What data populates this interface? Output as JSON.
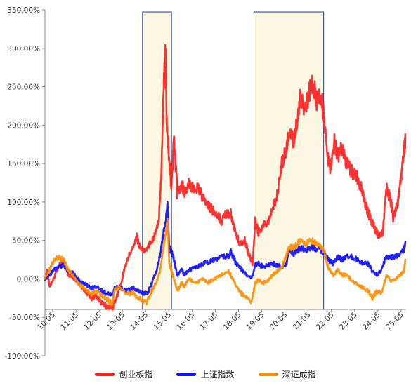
{
  "chart_data": {
    "type": "line",
    "title": "",
    "xlabel": "",
    "ylabel": "",
    "ylim": [
      -1.0,
      3.5
    ],
    "y_ticks": [
      "-100.00%",
      "-50.00%",
      "0.00%",
      "50.00%",
      "100.00%",
      "150.00%",
      "200.00%",
      "250.00%",
      "300.00%",
      "350.00%"
    ],
    "y_tick_values": [
      -1.0,
      -0.5,
      0.0,
      0.5,
      1.0,
      1.5,
      2.0,
      2.5,
      3.0,
      3.5
    ],
    "x_ticks": [
      "10-05",
      "11-05",
      "12-05",
      "13-05",
      "14-05",
      "15-05",
      "16-05",
      "17-05",
      "18-05",
      "19-05",
      "20-05",
      "21-05",
      "22-05",
      "23-05",
      "24-05",
      "25-05"
    ],
    "x_range": [
      2010.0,
      2025.55
    ],
    "grid": false,
    "legend_position": "bottom",
    "highlight_regions": [
      {
        "from": 2014.2,
        "to": 2015.45
      },
      {
        "from": 2019.0,
        "to": 2022.0
      }
    ],
    "series": [
      {
        "name": "创业板指",
        "color": "#ff1f1f",
        "points": [
          [
            2010.0,
            0.0
          ],
          [
            2010.1,
            0.1
          ],
          [
            2010.2,
            -0.1
          ],
          [
            2010.4,
            0.02
          ],
          [
            2010.6,
            0.18
          ],
          [
            2010.8,
            0.22
          ],
          [
            2011.0,
            0.05
          ],
          [
            2011.2,
            0.02
          ],
          [
            2011.4,
            -0.05
          ],
          [
            2011.6,
            -0.12
          ],
          [
            2011.8,
            -0.18
          ],
          [
            2012.0,
            -0.25
          ],
          [
            2012.2,
            -0.22
          ],
          [
            2012.4,
            -0.3
          ],
          [
            2012.6,
            -0.35
          ],
          [
            2012.9,
            -0.38
          ],
          [
            2013.0,
            -0.3
          ],
          [
            2013.2,
            -0.15
          ],
          [
            2013.4,
            0.1
          ],
          [
            2013.6,
            0.3
          ],
          [
            2013.8,
            0.4
          ],
          [
            2013.95,
            0.55
          ],
          [
            2014.1,
            0.4
          ],
          [
            2014.3,
            0.35
          ],
          [
            2014.5,
            0.45
          ],
          [
            2014.7,
            0.55
          ],
          [
            2014.9,
            0.75
          ],
          [
            2015.0,
            1.3
          ],
          [
            2015.1,
            2.4
          ],
          [
            2015.18,
            2.98
          ],
          [
            2015.25,
            2.0
          ],
          [
            2015.35,
            1.5
          ],
          [
            2015.45,
            1.2
          ],
          [
            2015.55,
            1.85
          ],
          [
            2015.7,
            1.1
          ],
          [
            2015.9,
            1.25
          ],
          [
            2016.0,
            1.1
          ],
          [
            2016.2,
            1.25
          ],
          [
            2016.4,
            1.15
          ],
          [
            2016.6,
            1.2
          ],
          [
            2016.8,
            1.05
          ],
          [
            2017.0,
            0.95
          ],
          [
            2017.2,
            0.9
          ],
          [
            2017.4,
            0.85
          ],
          [
            2017.6,
            0.75
          ],
          [
            2017.8,
            0.85
          ],
          [
            2018.0,
            0.85
          ],
          [
            2018.2,
            0.6
          ],
          [
            2018.4,
            0.45
          ],
          [
            2018.6,
            0.5
          ],
          [
            2018.8,
            0.3
          ],
          [
            2018.95,
            0.2
          ],
          [
            2019.05,
            0.75
          ],
          [
            2019.2,
            0.6
          ],
          [
            2019.4,
            0.7
          ],
          [
            2019.6,
            0.75
          ],
          [
            2019.8,
            0.9
          ],
          [
            2020.0,
            1.1
          ],
          [
            2020.2,
            1.5
          ],
          [
            2020.4,
            1.7
          ],
          [
            2020.5,
            1.9
          ],
          [
            2020.7,
            1.8
          ],
          [
            2020.9,
            2.1
          ],
          [
            2021.0,
            2.4
          ],
          [
            2021.2,
            2.2
          ],
          [
            2021.4,
            2.45
          ],
          [
            2021.55,
            2.55
          ],
          [
            2021.7,
            2.3
          ],
          [
            2021.9,
            2.4
          ],
          [
            2022.0,
            2.1
          ],
          [
            2022.15,
            1.6
          ],
          [
            2022.3,
            1.4
          ],
          [
            2022.45,
            1.8
          ],
          [
            2022.6,
            1.6
          ],
          [
            2022.8,
            1.7
          ],
          [
            2023.0,
            1.5
          ],
          [
            2023.2,
            1.4
          ],
          [
            2023.4,
            1.35
          ],
          [
            2023.6,
            1.2
          ],
          [
            2023.8,
            0.95
          ],
          [
            2024.0,
            0.8
          ],
          [
            2024.2,
            0.65
          ],
          [
            2024.4,
            0.55
          ],
          [
            2024.55,
            0.6
          ],
          [
            2024.7,
            1.2
          ],
          [
            2024.9,
            1.0
          ],
          [
            2025.0,
            0.8
          ],
          [
            2025.2,
            1.0
          ],
          [
            2025.35,
            1.35
          ],
          [
            2025.45,
            1.65
          ],
          [
            2025.52,
            1.8
          ]
        ]
      },
      {
        "name": "上证指数",
        "color": "#0c0cff",
        "points": [
          [
            2010.0,
            0.0
          ],
          [
            2010.2,
            0.05
          ],
          [
            2010.4,
            0.12
          ],
          [
            2010.6,
            0.15
          ],
          [
            2010.8,
            0.18
          ],
          [
            2011.0,
            0.1
          ],
          [
            2011.2,
            0.08
          ],
          [
            2011.4,
            0.0
          ],
          [
            2011.6,
            -0.05
          ],
          [
            2011.8,
            -0.08
          ],
          [
            2012.0,
            -0.12
          ],
          [
            2012.2,
            -0.1
          ],
          [
            2012.4,
            -0.14
          ],
          [
            2012.6,
            -0.18
          ],
          [
            2012.9,
            -0.22
          ],
          [
            2013.0,
            -0.12
          ],
          [
            2013.2,
            -0.1
          ],
          [
            2013.5,
            -0.15
          ],
          [
            2013.8,
            -0.12
          ],
          [
            2014.0,
            -0.15
          ],
          [
            2014.2,
            -0.18
          ],
          [
            2014.4,
            -0.2
          ],
          [
            2014.6,
            -0.05
          ],
          [
            2014.8,
            0.1
          ],
          [
            2014.95,
            0.3
          ],
          [
            2015.1,
            0.6
          ],
          [
            2015.2,
            0.75
          ],
          [
            2015.28,
            0.98
          ],
          [
            2015.35,
            0.4
          ],
          [
            2015.45,
            0.35
          ],
          [
            2015.55,
            0.25
          ],
          [
            2015.7,
            0.05
          ],
          [
            2015.9,
            0.12
          ],
          [
            2016.0,
            0.05
          ],
          [
            2016.2,
            0.12
          ],
          [
            2016.5,
            0.15
          ],
          [
            2016.8,
            0.2
          ],
          [
            2017.0,
            0.22
          ],
          [
            2017.3,
            0.25
          ],
          [
            2017.6,
            0.28
          ],
          [
            2017.9,
            0.3
          ],
          [
            2018.0,
            0.35
          ],
          [
            2018.2,
            0.22
          ],
          [
            2018.4,
            0.15
          ],
          [
            2018.6,
            0.08
          ],
          [
            2018.9,
            0.0
          ],
          [
            2019.05,
            0.18
          ],
          [
            2019.2,
            0.2
          ],
          [
            2019.4,
            0.15
          ],
          [
            2019.6,
            0.18
          ],
          [
            2019.8,
            0.2
          ],
          [
            2020.0,
            0.18
          ],
          [
            2020.2,
            0.15
          ],
          [
            2020.4,
            0.2
          ],
          [
            2020.5,
            0.35
          ],
          [
            2020.7,
            0.32
          ],
          [
            2020.9,
            0.38
          ],
          [
            2021.0,
            0.4
          ],
          [
            2021.2,
            0.38
          ],
          [
            2021.5,
            0.4
          ],
          [
            2021.8,
            0.38
          ],
          [
            2022.0,
            0.35
          ],
          [
            2022.2,
            0.25
          ],
          [
            2022.4,
            0.2
          ],
          [
            2022.6,
            0.28
          ],
          [
            2022.8,
            0.25
          ],
          [
            2023.0,
            0.3
          ],
          [
            2023.3,
            0.28
          ],
          [
            2023.6,
            0.22
          ],
          [
            2023.9,
            0.2
          ],
          [
            2024.1,
            0.1
          ],
          [
            2024.3,
            0.05
          ],
          [
            2024.5,
            0.12
          ],
          [
            2024.7,
            0.3
          ],
          [
            2024.9,
            0.28
          ],
          [
            2025.1,
            0.3
          ],
          [
            2025.3,
            0.32
          ],
          [
            2025.45,
            0.38
          ],
          [
            2025.52,
            0.48
          ]
        ]
      },
      {
        "name": "深证成指",
        "color": "#ff8c00",
        "points": [
          [
            2010.0,
            0.0
          ],
          [
            2010.2,
            0.12
          ],
          [
            2010.4,
            0.25
          ],
          [
            2010.6,
            0.28
          ],
          [
            2010.8,
            0.25
          ],
          [
            2011.0,
            0.12
          ],
          [
            2011.2,
            0.05
          ],
          [
            2011.4,
            -0.05
          ],
          [
            2011.6,
            -0.1
          ],
          [
            2011.8,
            -0.15
          ],
          [
            2012.0,
            -0.2
          ],
          [
            2012.2,
            -0.15
          ],
          [
            2012.4,
            -0.2
          ],
          [
            2012.6,
            -0.25
          ],
          [
            2012.9,
            -0.32
          ],
          [
            2013.0,
            -0.15
          ],
          [
            2013.2,
            -0.1
          ],
          [
            2013.5,
            -0.2
          ],
          [
            2013.8,
            -0.18
          ],
          [
            2014.0,
            -0.25
          ],
          [
            2014.2,
            -0.28
          ],
          [
            2014.4,
            -0.3
          ],
          [
            2014.6,
            -0.15
          ],
          [
            2014.8,
            -0.05
          ],
          [
            2014.95,
            0.1
          ],
          [
            2015.1,
            0.4
          ],
          [
            2015.2,
            0.6
          ],
          [
            2015.28,
            0.78
          ],
          [
            2015.35,
            0.2
          ],
          [
            2015.45,
            0.1
          ],
          [
            2015.55,
            0.0
          ],
          [
            2015.7,
            -0.15
          ],
          [
            2015.9,
            -0.05
          ],
          [
            2016.0,
            -0.1
          ],
          [
            2016.2,
            0.0
          ],
          [
            2016.5,
            -0.05
          ],
          [
            2016.8,
            0.0
          ],
          [
            2017.0,
            -0.05
          ],
          [
            2017.3,
            0.0
          ],
          [
            2017.6,
            0.05
          ],
          [
            2017.9,
            0.1
          ],
          [
            2018.0,
            0.05
          ],
          [
            2018.2,
            -0.08
          ],
          [
            2018.4,
            -0.18
          ],
          [
            2018.6,
            -0.22
          ],
          [
            2018.9,
            -0.3
          ],
          [
            2019.05,
            -0.05
          ],
          [
            2019.2,
            -0.02
          ],
          [
            2019.4,
            -0.05
          ],
          [
            2019.6,
            -0.02
          ],
          [
            2019.8,
            0.05
          ],
          [
            2020.0,
            0.1
          ],
          [
            2020.2,
            0.15
          ],
          [
            2020.4,
            0.3
          ],
          [
            2020.5,
            0.42
          ],
          [
            2020.7,
            0.4
          ],
          [
            2020.9,
            0.48
          ],
          [
            2021.0,
            0.5
          ],
          [
            2021.2,
            0.45
          ],
          [
            2021.5,
            0.5
          ],
          [
            2021.8,
            0.42
          ],
          [
            2022.0,
            0.38
          ],
          [
            2022.2,
            0.15
          ],
          [
            2022.4,
            0.05
          ],
          [
            2022.6,
            0.12
          ],
          [
            2022.8,
            0.05
          ],
          [
            2023.0,
            0.05
          ],
          [
            2023.3,
            -0.05
          ],
          [
            2023.6,
            -0.1
          ],
          [
            2023.9,
            -0.15
          ],
          [
            2024.1,
            -0.25
          ],
          [
            2024.3,
            -0.15
          ],
          [
            2024.5,
            -0.2
          ],
          [
            2024.7,
            0.05
          ],
          [
            2024.9,
            -0.02
          ],
          [
            2025.1,
            0.0
          ],
          [
            2025.3,
            0.05
          ],
          [
            2025.45,
            0.1
          ],
          [
            2025.52,
            0.25
          ]
        ]
      }
    ]
  }
}
